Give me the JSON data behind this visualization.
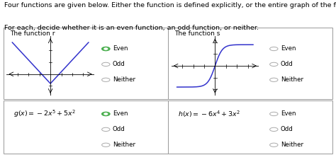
{
  "title_line1": "Four functions are given below. Either the function is defined explicitly, or the entire graph of the function is shown.",
  "title_line2": "For each, decide whether it is an even function, an odd function, or neither.",
  "panel_tl_label": "The function r",
  "panel_tr_label": "The function s",
  "panel_bl_formula_latex": "$g\\left(x\\right) = -2x^5 + 5x^2$",
  "panel_br_formula_latex": "$h\\left(x\\right) = -6x^4 + 3x^2$",
  "radio_labels": [
    "Even",
    "Odd",
    "Neither"
  ],
  "tl_selected": "Even",
  "bl_selected": "Even",
  "tr_selected": "none",
  "br_selected": "none",
  "selected_color": "#4CAF50",
  "line_color": "#3333cc",
  "bg_color": "#ffffff",
  "border_color": "#999999",
  "text_color": "#000000",
  "font_size_header": 6.8,
  "font_size_panel_title": 6.5,
  "font_size_radio": 6.2,
  "font_size_formula": 6.8
}
